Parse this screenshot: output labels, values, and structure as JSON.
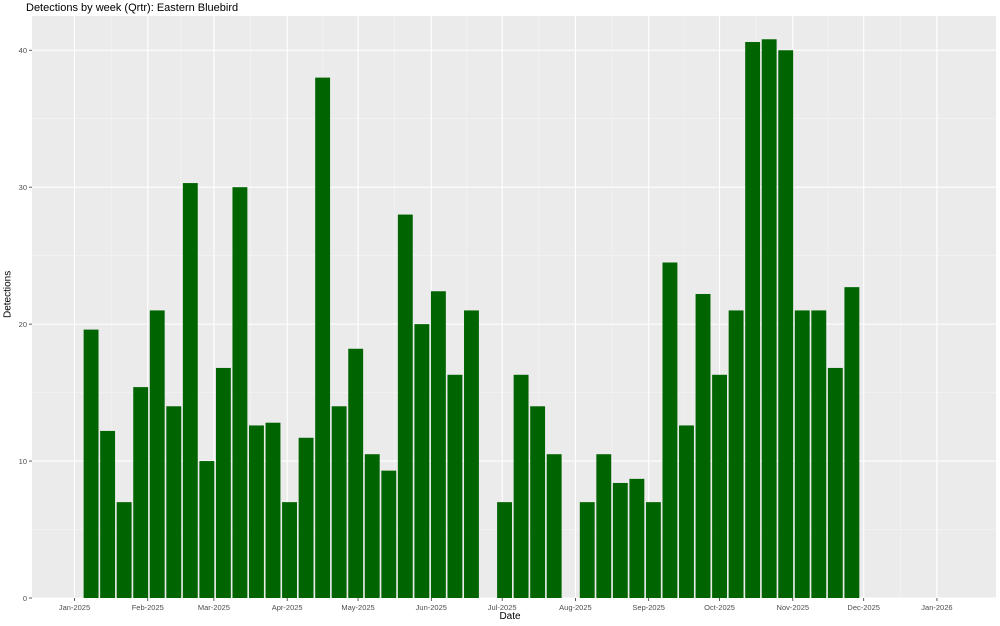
{
  "chart_data": {
    "type": "bar",
    "title": "Detections by week (Qrtr): Eastern Bluebird",
    "xlabel": "Date",
    "ylabel": "Detections",
    "ylim": [
      0,
      42.5
    ],
    "y_ticks": [
      0,
      10,
      20,
      30,
      40
    ],
    "x_ticks": [
      {
        "date": "2025-01-01",
        "label": "Jan-2025"
      },
      {
        "date": "2025-02-01",
        "label": "Feb-2025"
      },
      {
        "date": "2025-03-01",
        "label": "Mar-2025"
      },
      {
        "date": "2025-04-01",
        "label": "Apr-2025"
      },
      {
        "date": "2025-05-01",
        "label": "May-2025"
      },
      {
        "date": "2025-06-01",
        "label": "Jun-2025"
      },
      {
        "date": "2025-07-01",
        "label": "Jul-2025"
      },
      {
        "date": "2025-08-01",
        "label": "Aug-2025"
      },
      {
        "date": "2025-09-01",
        "label": "Sep-2025"
      },
      {
        "date": "2025-10-01",
        "label": "Oct-2025"
      },
      {
        "date": "2025-11-01",
        "label": "Nov-2025"
      },
      {
        "date": "2025-12-01",
        "label": "Dec-2025"
      },
      {
        "date": "2026-01-01",
        "label": "Jan-2026"
      }
    ],
    "xlim": [
      "2024-12-14",
      "2026-01-26"
    ],
    "bar_color": "#006400",
    "panel_background": "#ebebeb",
    "grid": true,
    "x": [
      "2025-01-08",
      "2025-01-15",
      "2025-01-22",
      "2025-01-29",
      "2025-02-05",
      "2025-02-12",
      "2025-02-19",
      "2025-02-26",
      "2025-03-05",
      "2025-03-12",
      "2025-03-19",
      "2025-03-26",
      "2025-04-02",
      "2025-04-09",
      "2025-04-16",
      "2025-04-23",
      "2025-04-30",
      "2025-05-07",
      "2025-05-14",
      "2025-05-21",
      "2025-05-28",
      "2025-06-04",
      "2025-06-11",
      "2025-06-18",
      "2025-06-25",
      "2025-07-02",
      "2025-07-09",
      "2025-07-16",
      "2025-07-23",
      "2025-07-30",
      "2025-08-06",
      "2025-08-13",
      "2025-08-20",
      "2025-08-27",
      "2025-09-03",
      "2025-09-10",
      "2025-09-17",
      "2025-09-24",
      "2025-10-01",
      "2025-10-08",
      "2025-10-15",
      "2025-10-22",
      "2025-10-29",
      "2025-11-05",
      "2025-11-12",
      "2025-11-19",
      "2025-11-26"
    ],
    "values": [
      19.6,
      12.2,
      7.0,
      15.4,
      21.0,
      14.0,
      30.3,
      10.0,
      16.8,
      30.0,
      12.6,
      12.8,
      7.0,
      11.7,
      38.0,
      14.0,
      18.2,
      10.5,
      9.3,
      28.0,
      20.0,
      22.4,
      16.3,
      21.0,
      0,
      7.0,
      16.3,
      14.0,
      10.5,
      0,
      7.0,
      10.5,
      8.4,
      8.7,
      7.0,
      24.5,
      12.6,
      22.2,
      16.3,
      21.0,
      40.6,
      40.8,
      40.0,
      21.0,
      21.0,
      16.8,
      22.7
    ]
  }
}
